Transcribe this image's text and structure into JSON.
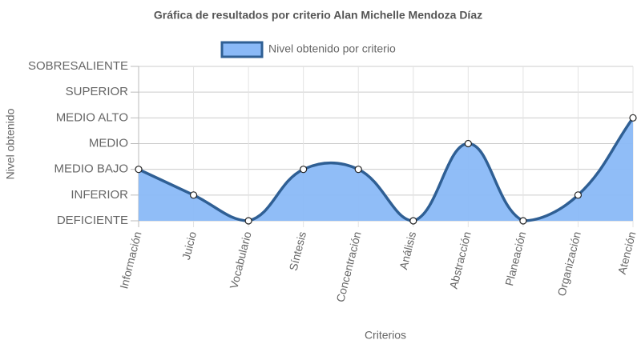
{
  "chart_data": {
    "type": "line",
    "title": "Gráfica de resultados por criterio Alan Michelle Mendoza Díaz",
    "x_label": "Criterios",
    "y_label": "Nivel obtenido",
    "categories": [
      "Información",
      "Juicio",
      "Vocabulario",
      "Síntesis",
      "Concentración",
      "Análisis",
      "Abstracción",
      "Planeación",
      "Organización",
      "Atención"
    ],
    "series": [
      {
        "name": "Nivel obtenido por criterio",
        "color": "#2f5f94",
        "fill": "#8ab9f7",
        "values": [
          2,
          1,
          0,
          2,
          2,
          0,
          3,
          0,
          1,
          4
        ]
      }
    ],
    "ylim": [
      0,
      6
    ],
    "yticks": [
      {
        "value": 0,
        "label": "DEFICIENTE"
      },
      {
        "value": 1,
        "label": "INFERIOR"
      },
      {
        "value": 2,
        "label": "MEDIO BAJO"
      },
      {
        "value": 3,
        "label": "MEDIO"
      },
      {
        "value": 4,
        "label": "MEDIO ALTO"
      },
      {
        "value": 5,
        "label": "SUPERIOR"
      },
      {
        "value": 6,
        "label": "SOBRESALIENTE"
      }
    ],
    "grid": true,
    "legend": "top"
  }
}
